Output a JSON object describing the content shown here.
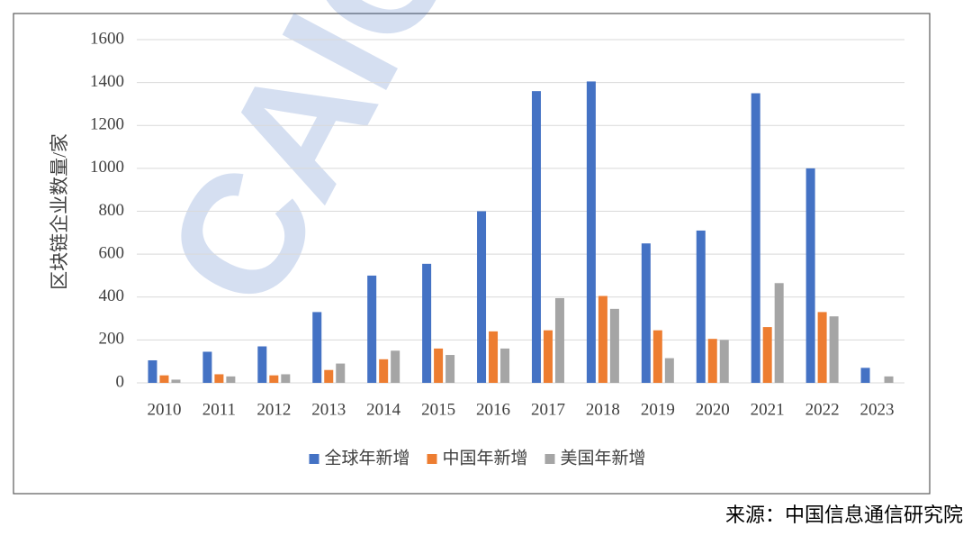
{
  "chart_data": {
    "type": "bar",
    "watermark": "CAICT",
    "y_label": "区块链企业数量/家",
    "source": "来源：中国信息通信研究院",
    "categories": [
      "2010",
      "2011",
      "2012",
      "2013",
      "2014",
      "2015",
      "2016",
      "2017",
      "2018",
      "2019",
      "2020",
      "2021",
      "2022",
      "2023"
    ],
    "series": [
      {
        "name": "全球年新增",
        "color": "#4472c4",
        "values": [
          105,
          145,
          170,
          330,
          500,
          555,
          800,
          1360,
          1405,
          650,
          710,
          1350,
          1000,
          70
        ]
      },
      {
        "name": "中国年新增",
        "color": "#ed7d31",
        "values": [
          35,
          40,
          35,
          60,
          110,
          160,
          240,
          245,
          405,
          245,
          205,
          260,
          330,
          null
        ]
      },
      {
        "name": "美国年新增",
        "color": "#a5a5a5",
        "values": [
          15,
          30,
          40,
          90,
          150,
          130,
          160,
          395,
          345,
          115,
          200,
          465,
          310,
          30
        ]
      }
    ],
    "ylim": [
      0,
      1600
    ],
    "yticks": [
      0,
      200,
      400,
      600,
      800,
      1000,
      1200,
      1400,
      1600
    ],
    "grid": true,
    "legend": "bottom"
  }
}
